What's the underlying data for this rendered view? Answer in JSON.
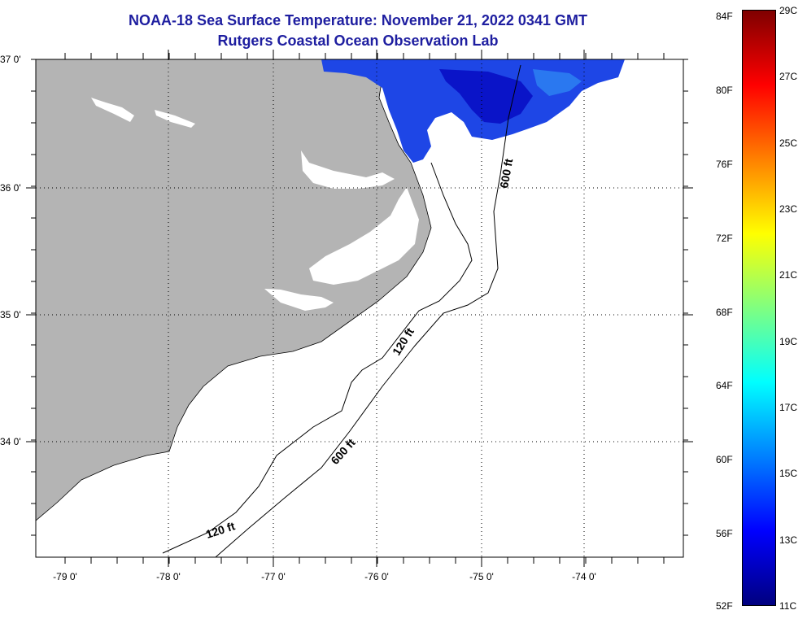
{
  "header": {
    "title": "NOAA-18 Sea Surface Temperature:  November 21, 2022 0341 GMT",
    "subtitle": "Rutgers Coastal Ocean Observation Lab"
  },
  "map": {
    "lon_labels": [
      "-79 0'",
      "-78 0'",
      "-77 0'",
      "-76 0'",
      "-75 0'",
      "-74 0'"
    ],
    "lat_labels": [
      "37 0'",
      "36 0'",
      "35 0'",
      "34 0'"
    ],
    "contour_labels": {
      "c600_north": "600 ft",
      "c600_south": "600 ft",
      "c120_mid": "120 ft",
      "c120_south": "120 ft"
    },
    "colors": {
      "land": "#b4b4b4",
      "ocean": "#ffffff",
      "sst_dark": "#0a14c8",
      "sst_mid": "#1e46e6"
    }
  },
  "colorbar": {
    "fahrenheit_labels": [
      "84F",
      "80F",
      "76F",
      "72F",
      "68F",
      "64F",
      "60F",
      "56F",
      "52F"
    ],
    "celsius_labels": [
      "29C",
      "27C",
      "25C",
      "23C",
      "21C",
      "19C",
      "17C",
      "15C",
      "13C",
      "11C"
    ],
    "gradient_colors": [
      "#00007f",
      "#0000ff",
      "#0080ff",
      "#00ffff",
      "#80ff80",
      "#ffff00",
      "#ff8000",
      "#ff0000",
      "#7f0000"
    ]
  }
}
